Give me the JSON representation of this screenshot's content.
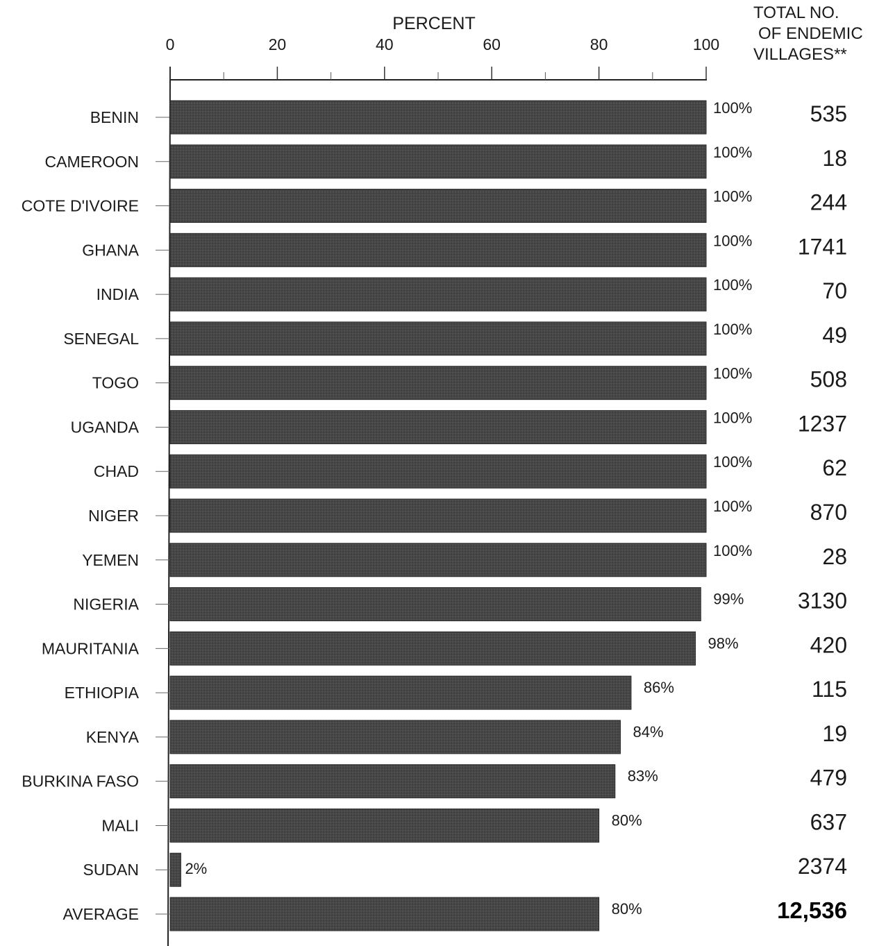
{
  "chart_data": {
    "type": "bar",
    "orientation": "horizontal",
    "xlabel": "PERCENT",
    "xlim": [
      0,
      100
    ],
    "xticks": [
      0,
      20,
      40,
      60,
      80,
      100
    ],
    "right_column_header": [
      "TOTAL NO.",
      "OF ENDEMIC",
      "VILLAGES**"
    ],
    "categories": [
      "BENIN",
      "CAMEROON",
      "COTE D'IVOIRE",
      "GHANA",
      "INDIA",
      "SENEGAL",
      "TOGO",
      "UGANDA",
      "CHAD",
      "NIGER",
      "YEMEN",
      "NIGERIA",
      "MAURITANIA",
      "ETHIOPIA",
      "KENYA",
      "BURKINA  FASO",
      "MALI",
      "SUDAN",
      "AVERAGE"
    ],
    "values": [
      100,
      100,
      100,
      100,
      100,
      100,
      100,
      100,
      100,
      100,
      100,
      99,
      98,
      86,
      84,
      83,
      80,
      2,
      80
    ],
    "value_labels": [
      "100%",
      "100%",
      "100%",
      "100%",
      "100%",
      "100%",
      "100%",
      "100%",
      "100%",
      "100%",
      "100%",
      "99%",
      "98%",
      "86%",
      "84%",
      "83%",
      "80%",
      "2%",
      "80%"
    ],
    "totals": [
      "535",
      "18",
      "244",
      "1741",
      "70",
      "49",
      "508",
      "1237",
      "62",
      "870",
      "28",
      "3130",
      "420",
      "115",
      "19",
      "479",
      "637",
      "2374",
      "12,536"
    ],
    "bar_color": "#454545",
    "grid": false
  }
}
